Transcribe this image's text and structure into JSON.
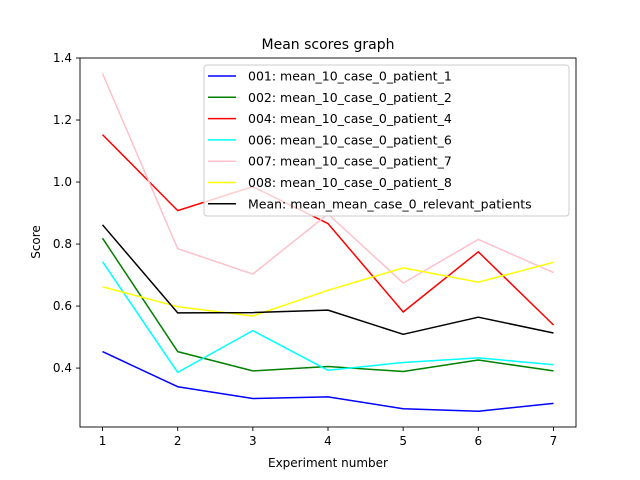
{
  "chart_data": {
    "type": "line",
    "title": "Mean scores graph",
    "xlabel": "Experiment number",
    "ylabel": "Score",
    "x": [
      1,
      2,
      3,
      4,
      5,
      6,
      7
    ],
    "xlim": [
      0.7,
      7.3
    ],
    "ylim": [
      0.21,
      1.4
    ],
    "yticks": [
      0.4,
      0.6,
      0.8,
      1.0,
      1.2,
      1.4
    ],
    "ytick_labels": [
      "0.4",
      "0.6",
      "0.8",
      "1.0",
      "1.2",
      "1.4"
    ],
    "xtick_labels": [
      "1",
      "2",
      "3",
      "4",
      "5",
      "6",
      "7"
    ],
    "legend_position": "top-right",
    "grid": false,
    "series": [
      {
        "name": "001: mean_10_case_0_patient_1",
        "color": "#0000ff",
        "values": [
          0.453,
          0.34,
          0.302,
          0.307,
          0.269,
          0.261,
          0.286
        ]
      },
      {
        "name": "002: mean_10_case_0_patient_2",
        "color": "#008000",
        "values": [
          0.819,
          0.453,
          0.391,
          0.405,
          0.389,
          0.426,
          0.391
        ]
      },
      {
        "name": "004: mean_10_case_0_patient_4",
        "color": "#ff0000",
        "values": [
          1.153,
          0.908,
          0.985,
          0.866,
          0.581,
          0.775,
          0.539
        ]
      },
      {
        "name": "006: mean_10_case_0_patient_6",
        "color": "#00ffff",
        "values": [
          0.743,
          0.386,
          0.521,
          0.393,
          0.418,
          0.433,
          0.411
        ]
      },
      {
        "name": "007: mean_10_case_0_patient_7",
        "color": "#ffc0cb",
        "values": [
          1.35,
          0.785,
          0.703,
          0.897,
          0.674,
          0.815,
          0.708
        ]
      },
      {
        "name": "008: mean_10_case_0_patient_8",
        "color": "#ffff00",
        "values": [
          0.662,
          0.598,
          0.568,
          0.651,
          0.723,
          0.677,
          0.741
        ]
      },
      {
        "name": "Mean: mean_mean_case_0_relevant_patients",
        "color": "#000000",
        "values": [
          0.862,
          0.578,
          0.579,
          0.587,
          0.509,
          0.564,
          0.513
        ]
      }
    ]
  }
}
